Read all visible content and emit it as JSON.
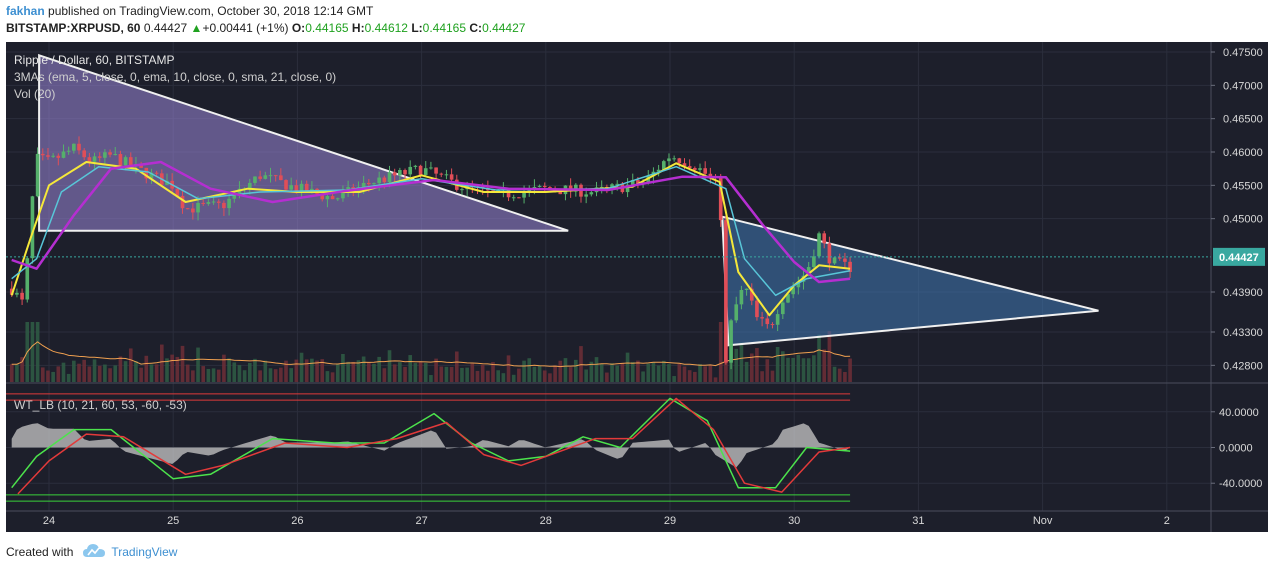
{
  "header": {
    "author": "fakhan",
    "published": "published on TradingView.com, October 30, 2018 12:14 GMT",
    "symbol": "BITSTAMP:XRPUSD, 60",
    "last": "0.44427",
    "change_arrow": "▲",
    "change": "+0.00441 (+1%)",
    "o_label": "O:",
    "o": "0.44165",
    "h_label": "H:",
    "h": "0.44612",
    "l_label": "L:",
    "l": "0.44165",
    "c_label": "C:",
    "c": "0.44427"
  },
  "legend": {
    "line1": "Ripple / Dollar, 60, BITSTAMP",
    "line2": "3MAs (ema, 5, close, 0, ema, 10, close, 0, sma, 21, close, 0)",
    "line3": "Vol (20)"
  },
  "indicator_label": "WT_LB (10, 21, 60, 53, -60, -53)",
  "footer": {
    "created": "Created with",
    "brand": "TradingView"
  },
  "colors": {
    "background": "#1d1f2b",
    "grid": "#2b2e3c",
    "up": "#55b06b",
    "down": "#e04e58",
    "ema5": "#f5e83a",
    "ema10": "#58c6d8",
    "sma21": "#b52ed1",
    "vol_ma": "#f0a050",
    "wt1": "#4ce34c",
    "wt2": "#e33a3a",
    "wt_hist": "#c8c8c8",
    "triangle1_fill": "#9a86d8",
    "triangle2_fill": "#3f79b5",
    "trendline": "#f0f0f0",
    "price_tag": "#39a8a0"
  },
  "chart_data": [
    {
      "type": "candlestick",
      "title": "Ripple / Dollar, 60, BITSTAMP",
      "timeframe": "60",
      "x_ticks": [
        "24",
        "25",
        "26",
        "27",
        "28",
        "29",
        "30",
        "31",
        "Nov",
        "2"
      ],
      "y_ticks": [
        "0.47500",
        "0.47000",
        "0.46500",
        "0.46000",
        "0.45500",
        "0.45000",
        "0.43900",
        "0.43300",
        "0.42800"
      ],
      "ylim": [
        0.4255,
        0.4765
      ],
      "last_price": 0.44427,
      "last_price_label": "0.44427",
      "price_path": [
        {
          "day": 23.7,
          "price": 0.4395
        },
        {
          "day": 23.8,
          "price": 0.437
        },
        {
          "day": 23.85,
          "price": 0.45
        },
        {
          "day": 23.9,
          "price": 0.459
        },
        {
          "day": 24.0,
          "price": 0.4585
        },
        {
          "day": 24.2,
          "price": 0.4605
        },
        {
          "day": 24.35,
          "price": 0.4585
        },
        {
          "day": 24.5,
          "price": 0.4595
        },
        {
          "day": 24.7,
          "price": 0.4575
        },
        {
          "day": 25.0,
          "price": 0.455
        },
        {
          "day": 25.1,
          "price": 0.4515
        },
        {
          "day": 25.4,
          "price": 0.452
        },
        {
          "day": 25.7,
          "price": 0.4565
        },
        {
          "day": 26.0,
          "price": 0.4545
        },
        {
          "day": 26.3,
          "price": 0.453
        },
        {
          "day": 26.6,
          "price": 0.4555
        },
        {
          "day": 27.0,
          "price": 0.4575
        },
        {
          "day": 27.3,
          "price": 0.455
        },
        {
          "day": 27.6,
          "price": 0.4535
        },
        {
          "day": 28.0,
          "price": 0.4545
        },
        {
          "day": 28.4,
          "price": 0.454
        },
        {
          "day": 28.8,
          "price": 0.4555
        },
        {
          "day": 29.0,
          "price": 0.4595
        },
        {
          "day": 29.2,
          "price": 0.458
        },
        {
          "day": 29.4,
          "price": 0.455
        },
        {
          "day": 29.45,
          "price": 0.428
        },
        {
          "day": 29.5,
          "price": 0.4355
        },
        {
          "day": 29.6,
          "price": 0.44
        },
        {
          "day": 29.7,
          "price": 0.435
        },
        {
          "day": 29.8,
          "price": 0.4335
        },
        {
          "day": 29.9,
          "price": 0.438
        },
        {
          "day": 30.1,
          "price": 0.442
        },
        {
          "day": 30.2,
          "price": 0.4475
        },
        {
          "day": 30.3,
          "price": 0.4435
        },
        {
          "day": 30.45,
          "price": 0.4427
        }
      ],
      "moving_averages": [
        {
          "name": "ema 5",
          "points": [
            {
              "day": 23.7,
              "price": 0.4385
            },
            {
              "day": 23.85,
              "price": 0.447
            },
            {
              "day": 24.0,
              "price": 0.455
            },
            {
              "day": 24.3,
              "price": 0.4585
            },
            {
              "day": 24.7,
              "price": 0.4575
            },
            {
              "day": 25.1,
              "price": 0.4525
            },
            {
              "day": 25.6,
              "price": 0.4545
            },
            {
              "day": 26.0,
              "price": 0.454
            },
            {
              "day": 26.5,
              "price": 0.454
            },
            {
              "day": 27.0,
              "price": 0.4565
            },
            {
              "day": 27.5,
              "price": 0.454
            },
            {
              "day": 28.0,
              "price": 0.454
            },
            {
              "day": 28.7,
              "price": 0.4548
            },
            {
              "day": 29.05,
              "price": 0.4583
            },
            {
              "day": 29.4,
              "price": 0.4555
            },
            {
              "day": 29.55,
              "price": 0.442
            },
            {
              "day": 29.8,
              "price": 0.4355
            },
            {
              "day": 30.0,
              "price": 0.44
            },
            {
              "day": 30.2,
              "price": 0.443
            },
            {
              "day": 30.45,
              "price": 0.4425
            }
          ]
        },
        {
          "name": "ema 10",
          "points": [
            {
              "day": 23.7,
              "price": 0.441
            },
            {
              "day": 23.9,
              "price": 0.444
            },
            {
              "day": 24.1,
              "price": 0.454
            },
            {
              "day": 24.4,
              "price": 0.4578
            },
            {
              "day": 24.8,
              "price": 0.457
            },
            {
              "day": 25.2,
              "price": 0.453
            },
            {
              "day": 25.7,
              "price": 0.454
            },
            {
              "day": 26.4,
              "price": 0.4543
            },
            {
              "day": 27.0,
              "price": 0.456
            },
            {
              "day": 27.6,
              "price": 0.4543
            },
            {
              "day": 28.5,
              "price": 0.4545
            },
            {
              "day": 29.05,
              "price": 0.4578
            },
            {
              "day": 29.45,
              "price": 0.4545
            },
            {
              "day": 29.6,
              "price": 0.444
            },
            {
              "day": 29.85,
              "price": 0.4385
            },
            {
              "day": 30.1,
              "price": 0.441
            },
            {
              "day": 30.45,
              "price": 0.4422
            }
          ]
        },
        {
          "name": "sma 21",
          "points": [
            {
              "day": 23.7,
              "price": 0.4438
            },
            {
              "day": 23.9,
              "price": 0.4425
            },
            {
              "day": 24.2,
              "price": 0.4505
            },
            {
              "day": 24.5,
              "price": 0.4575
            },
            {
              "day": 24.9,
              "price": 0.4585
            },
            {
              "day": 25.3,
              "price": 0.4545
            },
            {
              "day": 25.8,
              "price": 0.4525
            },
            {
              "day": 26.4,
              "price": 0.4542
            },
            {
              "day": 27.1,
              "price": 0.4558
            },
            {
              "day": 27.7,
              "price": 0.4545
            },
            {
              "day": 28.5,
              "price": 0.4543
            },
            {
              "day": 29.1,
              "price": 0.4563
            },
            {
              "day": 29.45,
              "price": 0.4562
            },
            {
              "day": 29.75,
              "price": 0.449
            },
            {
              "day": 30.0,
              "price": 0.4435
            },
            {
              "day": 30.2,
              "price": 0.4405
            },
            {
              "day": 30.45,
              "price": 0.441
            }
          ]
        }
      ],
      "patterns": [
        {
          "name": "descending triangle",
          "points": [
            {
              "day": 23.92,
              "price": 0.4745
            },
            {
              "day": 28.18,
              "price": 0.4482
            },
            {
              "day": 23.92,
              "price": 0.4482
            }
          ]
        },
        {
          "name": "symmetrical triangle",
          "points": [
            {
              "day": 29.42,
              "price": 0.4503
            },
            {
              "day": 32.45,
              "price": 0.4362
            },
            {
              "day": 29.47,
              "price": 0.431
            }
          ]
        }
      ]
    },
    {
      "type": "line",
      "title": "WT_LB (10, 21, 60, 53, -60, -53)",
      "y_ticks": [
        "40.0000",
        "0.0000",
        "-40.0000"
      ],
      "ylim": [
        -70,
        70
      ],
      "levels": [
        60,
        53,
        -60,
        -53
      ],
      "series": [
        {
          "name": "wt1",
          "points": [
            {
              "day": 23.7,
              "price": -45
            },
            {
              "day": 23.9,
              "price": -10
            },
            {
              "day": 24.2,
              "price": 20
            },
            {
              "day": 24.5,
              "price": 20
            },
            {
              "day": 25.0,
              "price": -35
            },
            {
              "day": 25.3,
              "price": -30
            },
            {
              "day": 25.8,
              "price": 10
            },
            {
              "day": 26.3,
              "price": 5
            },
            {
              "day": 26.7,
              "price": 5
            },
            {
              "day": 27.1,
              "price": 38
            },
            {
              "day": 27.4,
              "price": 5
            },
            {
              "day": 27.7,
              "price": -15
            },
            {
              "day": 28.0,
              "price": -10
            },
            {
              "day": 28.3,
              "price": 12
            },
            {
              "day": 28.6,
              "price": 0
            },
            {
              "day": 29.0,
              "price": 55
            },
            {
              "day": 29.3,
              "price": 30
            },
            {
              "day": 29.55,
              "price": -45
            },
            {
              "day": 29.85,
              "price": -45
            },
            {
              "day": 30.1,
              "price": 0
            },
            {
              "day": 30.45,
              "price": -4
            }
          ]
        },
        {
          "name": "wt2",
          "points": [
            {
              "day": 23.75,
              "price": -52
            },
            {
              "day": 24.0,
              "price": -15
            },
            {
              "day": 24.3,
              "price": 15
            },
            {
              "day": 24.6,
              "price": 12
            },
            {
              "day": 25.1,
              "price": -30
            },
            {
              "day": 25.4,
              "price": -20
            },
            {
              "day": 25.9,
              "price": 5
            },
            {
              "day": 26.4,
              "price": 0
            },
            {
              "day": 26.8,
              "price": 10
            },
            {
              "day": 27.2,
              "price": 28
            },
            {
              "day": 27.5,
              "price": -8
            },
            {
              "day": 27.8,
              "price": -20
            },
            {
              "day": 28.4,
              "price": 10
            },
            {
              "day": 28.7,
              "price": 10
            },
            {
              "day": 29.05,
              "price": 55
            },
            {
              "day": 29.35,
              "price": 20
            },
            {
              "day": 29.6,
              "price": -40
            },
            {
              "day": 29.9,
              "price": -50
            },
            {
              "day": 30.2,
              "price": -5
            },
            {
              "day": 30.45,
              "price": 0
            }
          ]
        }
      ]
    }
  ]
}
